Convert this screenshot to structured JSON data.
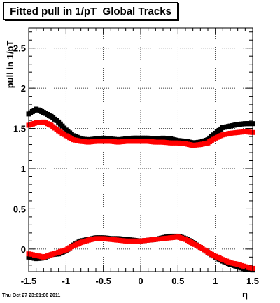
{
  "title": "Fitted pull in 1/pT  Global Tracks",
  "footer": "Thu Oct 27 23:01:06 2011",
  "chart_data": {
    "type": "scatter",
    "xlabel": "η",
    "ylabel": "pull in 1/pT",
    "xlim": [
      -1.5,
      1.5
    ],
    "ylim": [
      -0.28,
      2.75
    ],
    "x_ticks": [
      "-1.5",
      "-1",
      "-0.5",
      "0",
      "0.5",
      "1",
      "1.5"
    ],
    "y_ticks": [
      "0",
      "0.5",
      "1",
      "1.5",
      "2",
      "2.5"
    ],
    "grid": true,
    "series": [
      {
        "color": "#000000",
        "x": [
          -1.5,
          -1.4,
          -1.3,
          -1.2,
          -1.1,
          -1.0,
          -0.9,
          -0.8,
          -0.7,
          -0.6,
          -0.5,
          -0.4,
          -0.3,
          -0.2,
          -0.1,
          0.0,
          0.1,
          0.2,
          0.3,
          0.4,
          0.5,
          0.6,
          0.7,
          0.8,
          0.9,
          1.0,
          1.1,
          1.2,
          1.3,
          1.4,
          1.5
        ],
        "values": [
          1.68,
          1.74,
          1.7,
          1.65,
          1.58,
          1.48,
          1.41,
          1.37,
          1.36,
          1.37,
          1.38,
          1.37,
          1.36,
          1.37,
          1.38,
          1.38,
          1.38,
          1.37,
          1.38,
          1.37,
          1.35,
          1.34,
          1.32,
          1.33,
          1.36,
          1.44,
          1.51,
          1.53,
          1.55,
          1.56,
          1.56
        ]
      },
      {
        "color": "#ff0000",
        "x": [
          -1.5,
          -1.4,
          -1.3,
          -1.2,
          -1.1,
          -1.0,
          -0.9,
          -0.8,
          -0.7,
          -0.6,
          -0.5,
          -0.4,
          -0.3,
          -0.2,
          -0.1,
          0.0,
          0.1,
          0.2,
          0.3,
          0.4,
          0.5,
          0.6,
          0.7,
          0.8,
          0.9,
          1.0,
          1.1,
          1.2,
          1.3,
          1.4,
          1.5
        ],
        "values": [
          1.54,
          1.57,
          1.58,
          1.54,
          1.47,
          1.41,
          1.36,
          1.34,
          1.33,
          1.34,
          1.34,
          1.34,
          1.33,
          1.34,
          1.34,
          1.34,
          1.34,
          1.33,
          1.33,
          1.32,
          1.32,
          1.31,
          1.29,
          1.3,
          1.32,
          1.38,
          1.42,
          1.44,
          1.45,
          1.46,
          1.45
        ]
      },
      {
        "color": "#000000",
        "x": [
          -1.5,
          -1.4,
          -1.3,
          -1.2,
          -1.1,
          -1.0,
          -0.9,
          -0.8,
          -0.7,
          -0.6,
          -0.5,
          -0.4,
          -0.3,
          -0.2,
          -0.1,
          0.0,
          0.1,
          0.2,
          0.3,
          0.4,
          0.5,
          0.6,
          0.7,
          0.8,
          0.9,
          1.0,
          1.1,
          1.2,
          1.3,
          1.4,
          1.5
        ],
        "values": [
          -0.1,
          -0.12,
          -0.11,
          -0.07,
          -0.06,
          -0.02,
          0.05,
          0.1,
          0.12,
          0.14,
          0.14,
          0.13,
          0.13,
          0.12,
          0.11,
          0.1,
          0.11,
          0.12,
          0.14,
          0.16,
          0.16,
          0.13,
          0.08,
          0.02,
          -0.04,
          -0.1,
          -0.15,
          -0.19,
          -0.22,
          -0.25,
          -0.26
        ]
      },
      {
        "color": "#ff0000",
        "x": [
          -1.5,
          -1.4,
          -1.3,
          -1.2,
          -1.1,
          -1.0,
          -0.9,
          -0.8,
          -0.7,
          -0.6,
          -0.5,
          -0.4,
          -0.3,
          -0.2,
          -0.1,
          0.0,
          0.1,
          0.2,
          0.3,
          0.4,
          0.5,
          0.6,
          0.7,
          0.8,
          0.9,
          1.0,
          1.1,
          1.2,
          1.3,
          1.4,
          1.5
        ],
        "values": [
          -0.06,
          -0.08,
          -0.1,
          -0.07,
          -0.04,
          -0.01,
          0.04,
          0.08,
          0.11,
          0.13,
          0.13,
          0.12,
          0.11,
          0.1,
          0.1,
          0.1,
          0.11,
          0.12,
          0.13,
          0.14,
          0.15,
          0.12,
          0.07,
          0.02,
          -0.04,
          -0.09,
          -0.13,
          -0.17,
          -0.19,
          -0.22,
          -0.24
        ]
      }
    ]
  }
}
